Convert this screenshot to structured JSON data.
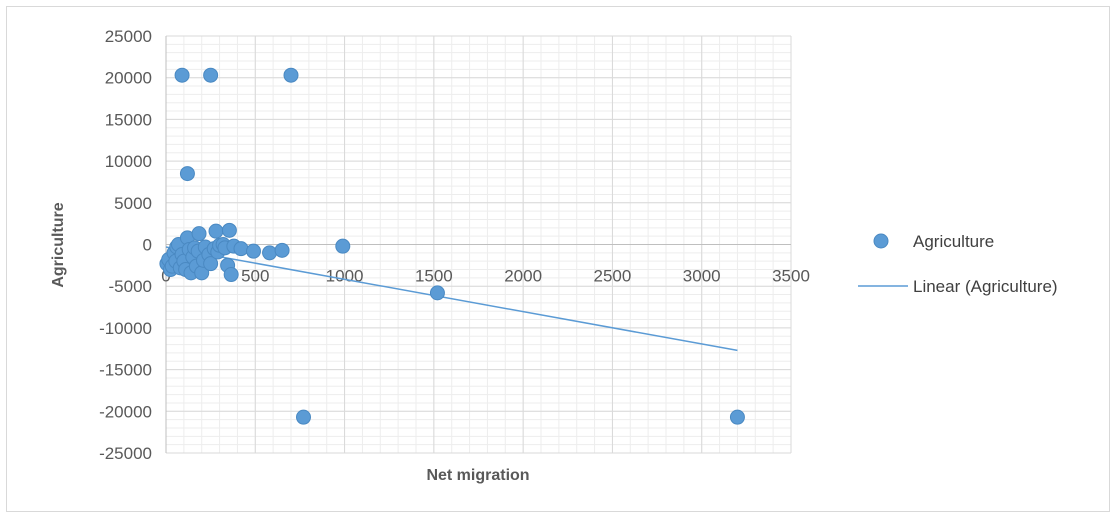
{
  "chart_data": {
    "type": "scatter",
    "title": "",
    "xlabel": "Net migration",
    "ylabel": "Agriculture",
    "xlim": [
      0,
      3500
    ],
    "ylim": [
      -25000,
      25000
    ],
    "x_ticks": [
      "0",
      "500",
      "1000",
      "1500",
      "2000",
      "2500",
      "3000",
      "3500"
    ],
    "y_ticks": [
      "25000",
      "20000",
      "15000",
      "10000",
      "5000",
      "0",
      "-5000",
      "-10000",
      "-15000",
      "-20000",
      "-25000"
    ],
    "grid": true,
    "legend_position": "right",
    "series": [
      {
        "name": "Agriculture",
        "color": "#5b9bd5",
        "points": [
          [
            90,
            20300
          ],
          [
            250,
            20300
          ],
          [
            700,
            20300
          ],
          [
            120,
            8500
          ],
          [
            5,
            -2300
          ],
          [
            15,
            -1800
          ],
          [
            25,
            -3000
          ],
          [
            35,
            -2600
          ],
          [
            45,
            -1000
          ],
          [
            55,
            -2000
          ],
          [
            60,
            -300
          ],
          [
            70,
            0
          ],
          [
            80,
            -2800
          ],
          [
            90,
            -1200
          ],
          [
            100,
            -2000
          ],
          [
            110,
            -3000
          ],
          [
            120,
            800
          ],
          [
            130,
            -600
          ],
          [
            140,
            -3400
          ],
          [
            150,
            -1500
          ],
          [
            160,
            -400
          ],
          [
            170,
            -2600
          ],
          [
            180,
            -800
          ],
          [
            185,
            1300
          ],
          [
            200,
            -3400
          ],
          [
            210,
            -1900
          ],
          [
            220,
            -300
          ],
          [
            240,
            -1200
          ],
          [
            250,
            -2300
          ],
          [
            270,
            -500
          ],
          [
            280,
            1600
          ],
          [
            290,
            -900
          ],
          [
            300,
            -100
          ],
          [
            320,
            0
          ],
          [
            330,
            -400
          ],
          [
            345,
            -2500
          ],
          [
            355,
            1700
          ],
          [
            365,
            -3600
          ],
          [
            380,
            -200
          ],
          [
            420,
            -500
          ],
          [
            490,
            -800
          ],
          [
            580,
            -1000
          ],
          [
            650,
            -700
          ],
          [
            990,
            -200
          ],
          [
            1520,
            -5800
          ],
          [
            770,
            -20700
          ],
          [
            3200,
            -20700
          ]
        ]
      }
    ],
    "trendline": {
      "name": "Linear (Agriculture)",
      "type": "linear",
      "color": "#5b9bd5",
      "x": [
        0,
        3200
      ],
      "y": [
        -300,
        -12700
      ]
    }
  },
  "legend": {
    "series_label": "Agriculture",
    "trend_label": "Linear (Agriculture)"
  }
}
